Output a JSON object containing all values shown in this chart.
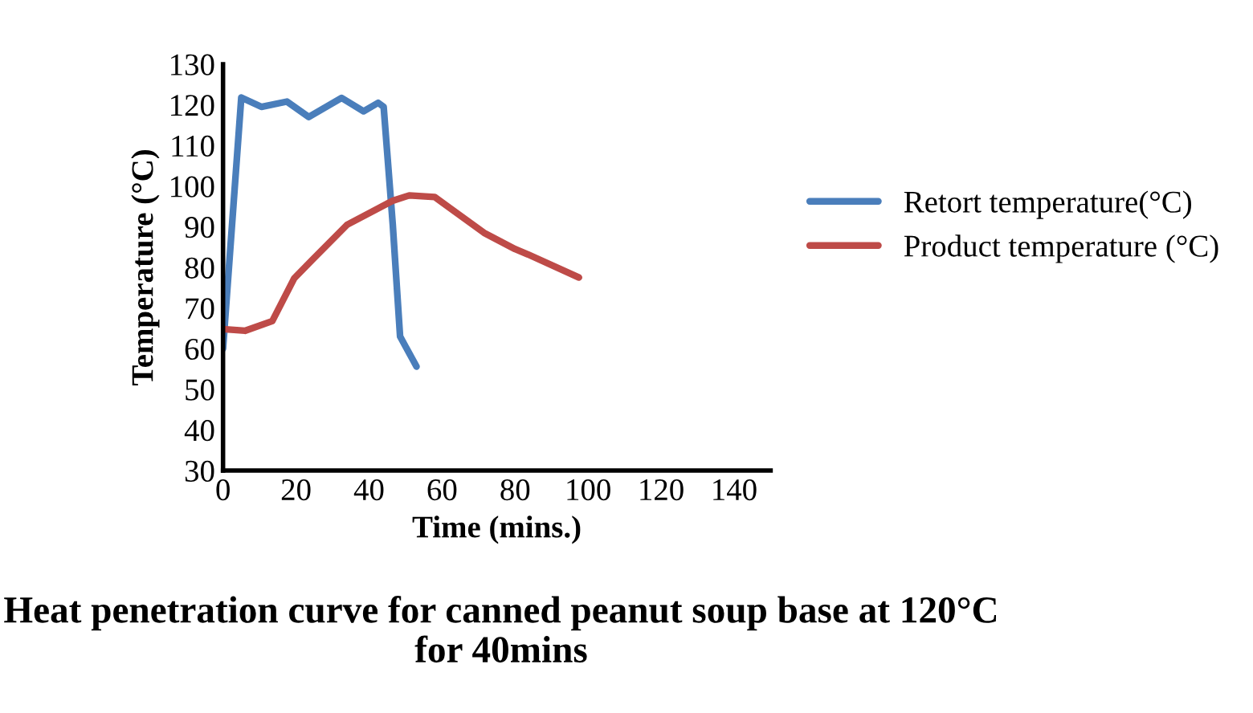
{
  "chart_data": {
    "type": "line",
    "title": "Heat penetration curve for canned peanut soup base at 120°C for 40mins",
    "xlabel": "Time (mins.)",
    "ylabel": "Temperature (°C)",
    "xlim": [
      0,
      150
    ],
    "xticks": [
      0,
      20,
      40,
      60,
      80,
      100,
      120,
      140
    ],
    "ylim": [
      30,
      130
    ],
    "yticks": [
      30,
      40,
      50,
      60,
      70,
      80,
      90,
      100,
      110,
      120,
      130
    ],
    "grid": false,
    "legend": "right",
    "marker": "none",
    "line_style": "solid",
    "series": [
      {
        "name": "Retort temperature(°C)",
        "color": "#4a7ebb",
        "x": [
          0,
          5,
          10.5,
          17.5,
          23.5,
          32.5,
          38.5,
          42.5,
          44,
          46.5,
          48.5,
          53
        ],
        "values": [
          60,
          121.8,
          119.5,
          120.8,
          117,
          121.7,
          118.4,
          120.5,
          119.5,
          90.5,
          63,
          55.6
        ]
      },
      {
        "name": "Product temperature (°C)",
        "color": "#be4b48",
        "x": [
          0,
          6,
          13.5,
          19.5,
          24.5,
          34,
          46.5,
          51,
          58,
          71.5,
          80,
          83.5,
          97.5
        ],
        "values": [
          64.8,
          64.4,
          66.8,
          77.3,
          81.9,
          90.5,
          96.4,
          97.7,
          97.3,
          88.5,
          84.5,
          83.2,
          77.5
        ]
      }
    ]
  }
}
